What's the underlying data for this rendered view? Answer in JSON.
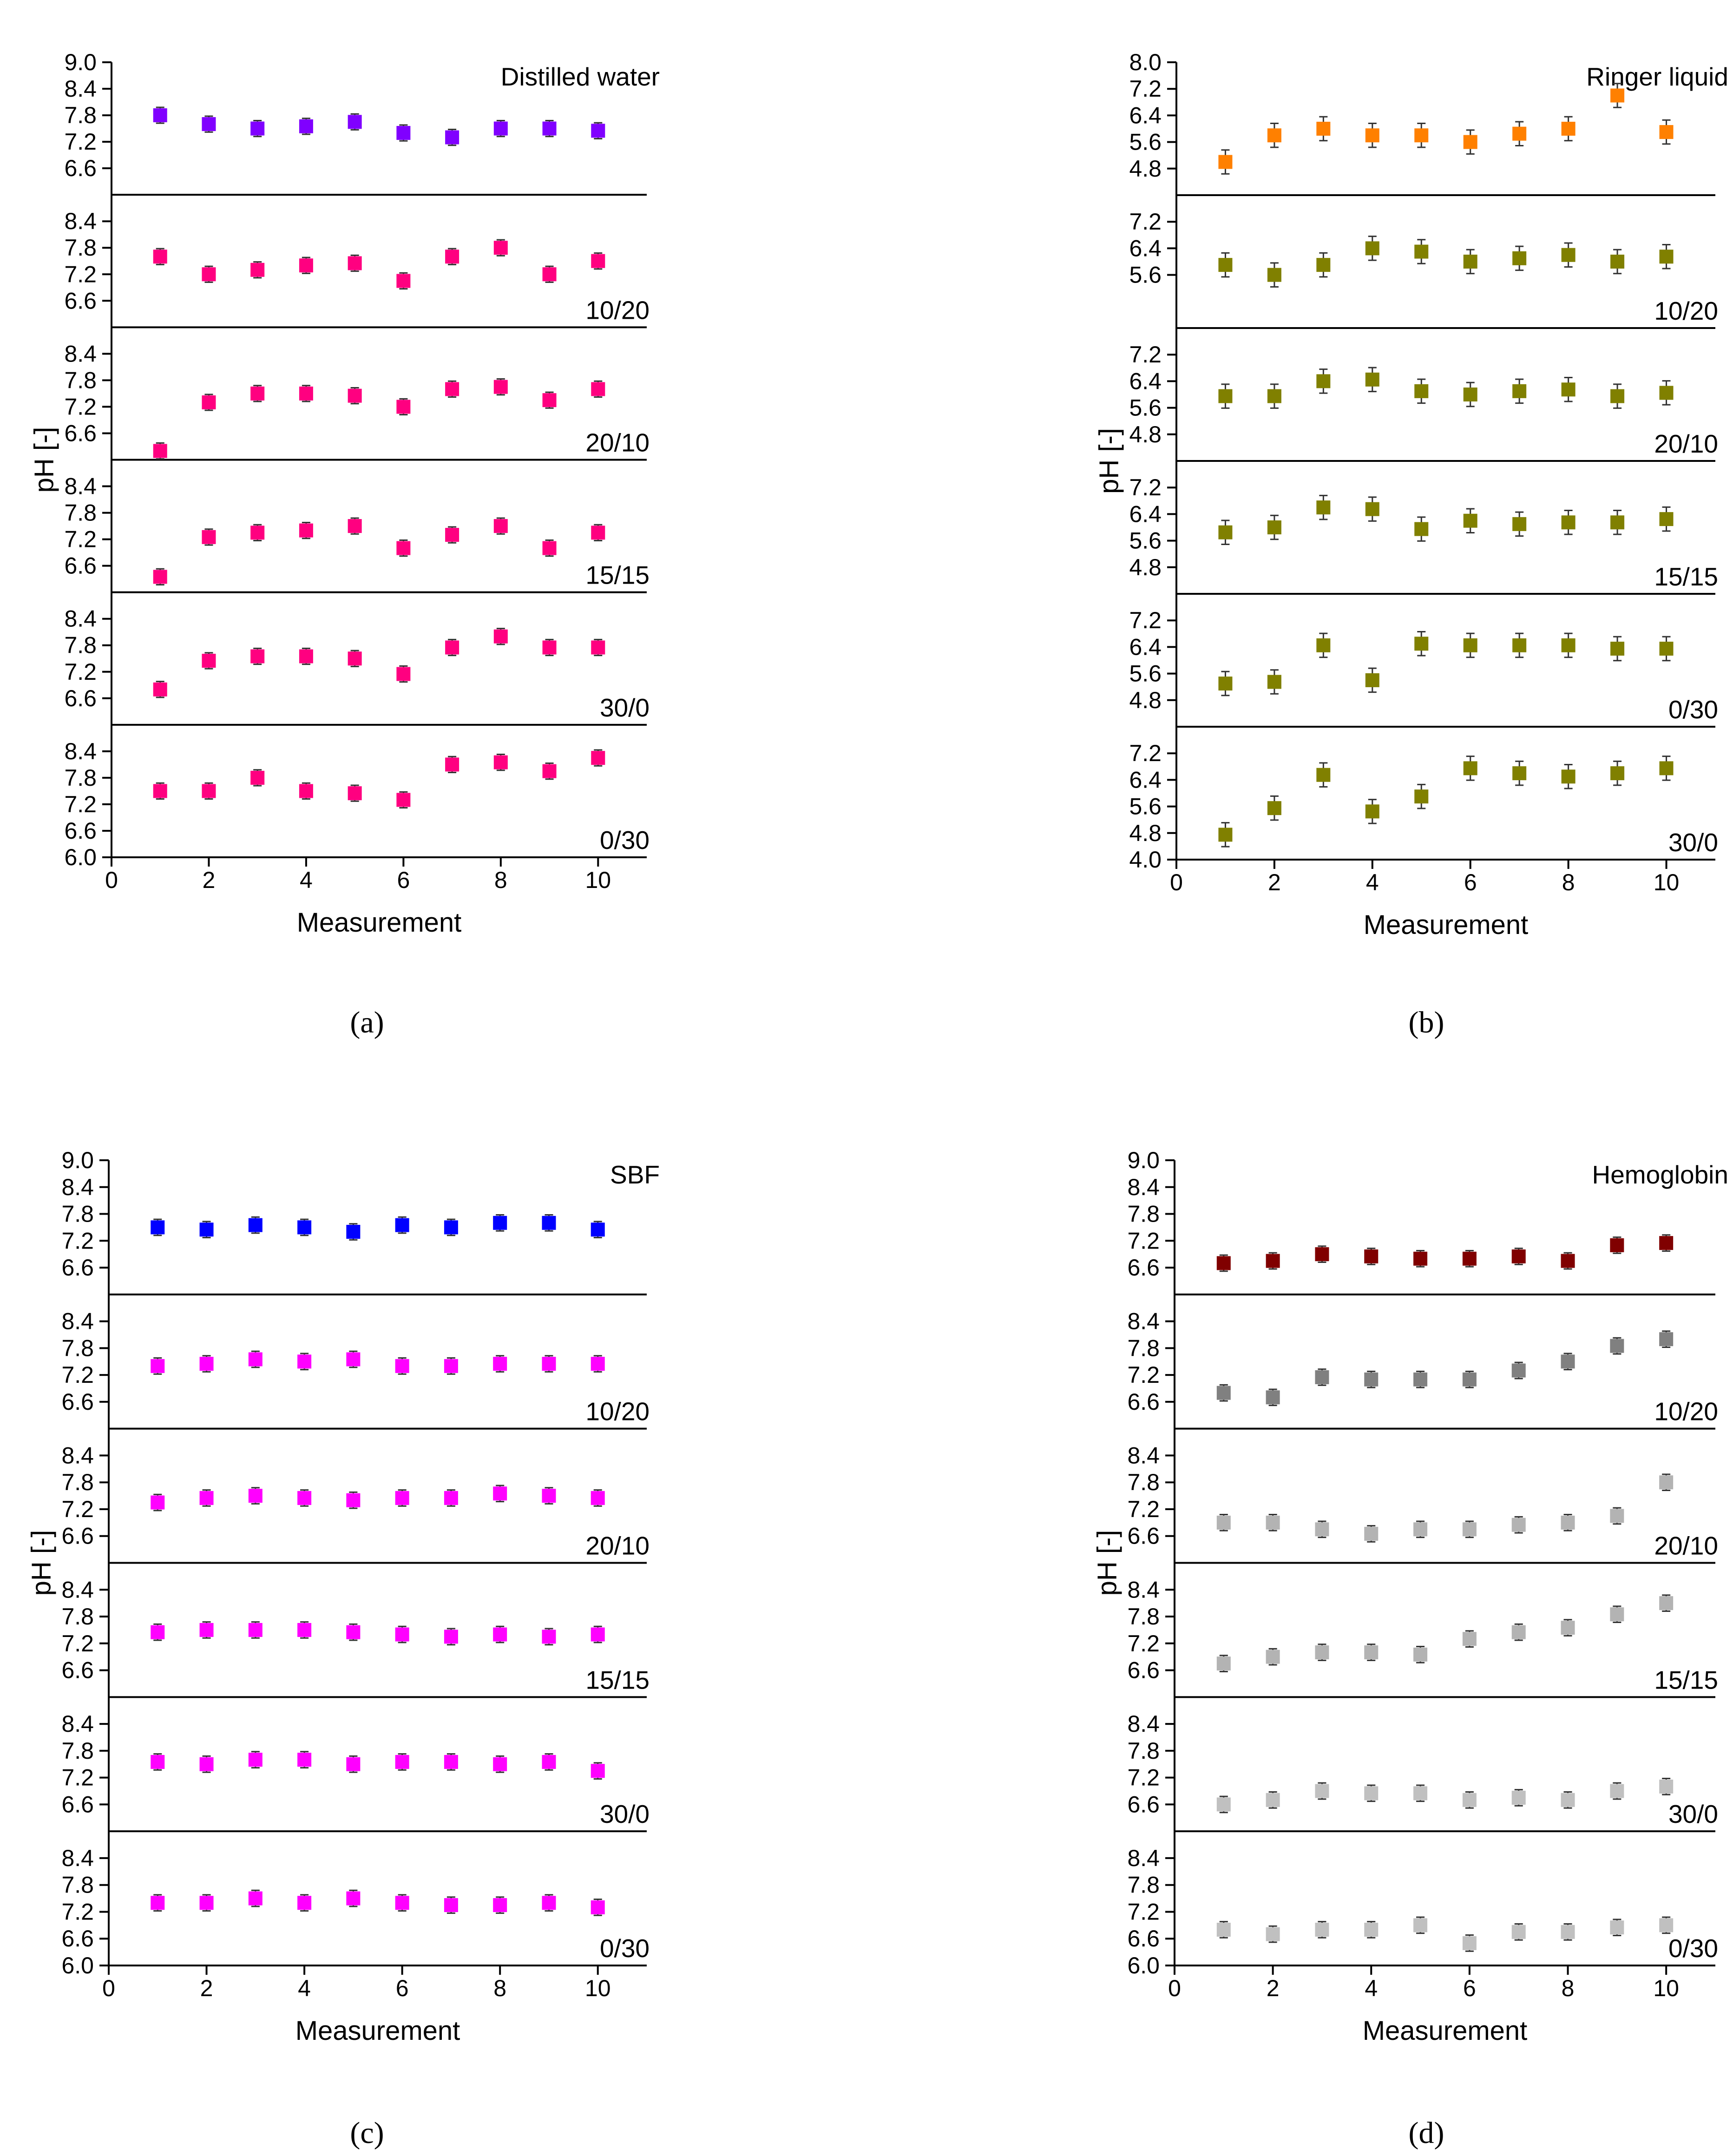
{
  "chart_data": [
    {
      "type": "scatter",
      "caption": "(a)",
      "xlabel": "Measurement",
      "ylabel": "pH [-]",
      "xlim": [
        0,
        11
      ],
      "xticks": [
        0,
        2,
        4,
        6,
        8,
        10
      ],
      "error": 0.18,
      "panels": [
        {
          "label": "Distilled water",
          "label_pos": "top-right",
          "color": "#8000ff",
          "ylim": [
            6.0,
            9.0
          ],
          "ticks": [
            6.6,
            7.2,
            7.8,
            8.4,
            9.0
          ],
          "tick_labels": [
            "6.6",
            "7.2",
            "7.8",
            "8.4",
            "9.0"
          ],
          "values": [
            7.8,
            7.6,
            7.5,
            7.55,
            7.65,
            7.4,
            7.3,
            7.5,
            7.5,
            7.45
          ]
        },
        {
          "label": "10/20",
          "label_pos": "bottom-right",
          "color": "#ff0080",
          "ylim": [
            6.0,
            9.0
          ],
          "ticks": [
            6.6,
            7.2,
            7.8,
            8.4
          ],
          "tick_labels": [
            "6.6",
            "7.2",
            "7.8",
            "8.4"
          ],
          "values": [
            7.6,
            7.2,
            7.3,
            7.4,
            7.45,
            7.05,
            7.6,
            7.8,
            7.2,
            7.5
          ]
        },
        {
          "label": "20/10",
          "label_pos": "bottom-right",
          "color": "#ff0080",
          "ylim": [
            6.0,
            9.0
          ],
          "ticks": [
            6.6,
            7.2,
            7.8,
            8.4
          ],
          "tick_labels": [
            "6.6",
            "7.2",
            "7.8",
            "8.4"
          ],
          "values": [
            6.2,
            7.3,
            7.5,
            7.5,
            7.45,
            7.2,
            7.6,
            7.65,
            7.35,
            7.6
          ]
        },
        {
          "label": "15/15",
          "label_pos": "bottom-right",
          "color": "#ff0080",
          "ylim": [
            6.0,
            9.0
          ],
          "ticks": [
            6.6,
            7.2,
            7.8,
            8.4
          ],
          "tick_labels": [
            "6.6",
            "7.2",
            "7.8",
            "8.4"
          ],
          "values": [
            6.35,
            7.25,
            7.35,
            7.4,
            7.5,
            7.0,
            7.3,
            7.5,
            7.0,
            7.35
          ]
        },
        {
          "label": "30/0",
          "label_pos": "bottom-right",
          "color": "#ff0080",
          "ylim": [
            6.0,
            9.0
          ],
          "ticks": [
            6.6,
            7.2,
            7.8,
            8.4
          ],
          "tick_labels": [
            "6.6",
            "7.2",
            "7.8",
            "8.4"
          ],
          "values": [
            6.8,
            7.45,
            7.55,
            7.55,
            7.5,
            7.15,
            7.75,
            8.0,
            7.75,
            7.75
          ]
        },
        {
          "label": "0/30",
          "label_pos": "bottom-right",
          "color": "#ff0080",
          "ylim": [
            6.0,
            9.0
          ],
          "ticks": [
            6.0,
            6.6,
            7.2,
            7.8,
            8.4
          ],
          "tick_labels": [
            "6.0",
            "6.6",
            "7.2",
            "7.8",
            "8.4"
          ],
          "values": [
            7.5,
            7.5,
            7.8,
            7.5,
            7.45,
            7.3,
            8.1,
            8.15,
            7.95,
            8.25
          ]
        }
      ]
    },
    {
      "type": "scatter",
      "caption": "(b)",
      "xlabel": "Measurement",
      "ylabel": "pH [-]",
      "xlim": [
        0,
        11
      ],
      "xticks": [
        0,
        2,
        4,
        6,
        8,
        10
      ],
      "error": 0.36,
      "panels": [
        {
          "label": "Ringer liquid",
          "label_pos": "top-right",
          "color": "#ff8000",
          "ylim": [
            4.0,
            8.0
          ],
          "ticks": [
            4.8,
            5.6,
            6.4,
            7.2,
            8.0
          ],
          "tick_labels": [
            "4.8",
            "5.6",
            "6.4",
            "7.2",
            "8.0"
          ],
          "values": [
            5.0,
            5.8,
            6.0,
            5.8,
            5.8,
            5.6,
            5.85,
            6.0,
            7.0,
            5.9
          ]
        },
        {
          "label": "10/20",
          "label_pos": "bottom-right",
          "color": "#808000",
          "ylim": [
            4.0,
            8.0
          ],
          "ticks": [
            5.6,
            6.4,
            7.2
          ],
          "tick_labels": [
            "5.6",
            "6.4",
            "7.2"
          ],
          "values": [
            5.9,
            5.6,
            5.9,
            6.4,
            6.3,
            6.0,
            6.1,
            6.2,
            6.0,
            6.15
          ]
        },
        {
          "label": "20/10",
          "label_pos": "bottom-right",
          "color": "#808000",
          "ylim": [
            4.0,
            8.0
          ],
          "ticks": [
            4.8,
            5.6,
            6.4,
            7.2
          ],
          "tick_labels": [
            "4.8",
            "5.6",
            "6.4",
            "7.2"
          ],
          "values": [
            5.95,
            5.95,
            6.4,
            6.45,
            6.1,
            6.0,
            6.1,
            6.15,
            5.95,
            6.05
          ]
        },
        {
          "label": "15/15",
          "label_pos": "bottom-right",
          "color": "#808000",
          "ylim": [
            4.0,
            8.0
          ],
          "ticks": [
            4.8,
            5.6,
            6.4,
            7.2
          ],
          "tick_labels": [
            "4.8",
            "5.6",
            "6.4",
            "7.2"
          ],
          "values": [
            5.85,
            6.0,
            6.6,
            6.55,
            5.95,
            6.2,
            6.1,
            6.15,
            6.15,
            6.25
          ]
        },
        {
          "label": "0/30",
          "label_pos": "bottom-right",
          "color": "#808000",
          "ylim": [
            4.0,
            8.0
          ],
          "ticks": [
            4.8,
            5.6,
            6.4,
            7.2
          ],
          "tick_labels": [
            "4.8",
            "5.6",
            "6.4",
            "7.2"
          ],
          "values": [
            5.3,
            5.35,
            6.45,
            5.4,
            6.5,
            6.45,
            6.45,
            6.45,
            6.35,
            6.35
          ]
        },
        {
          "label": "30/0",
          "label_pos": "bottom-right",
          "color": "#808000",
          "ylim": [
            4.0,
            8.0
          ],
          "ticks": [
            4.0,
            4.8,
            5.6,
            6.4,
            7.2
          ],
          "tick_labels": [
            "4.0",
            "4.8",
            "5.6",
            "6.4",
            "7.2"
          ],
          "values": [
            4.75,
            5.55,
            6.55,
            5.45,
            5.9,
            6.75,
            6.6,
            6.5,
            6.6,
            6.75
          ]
        }
      ]
    },
    {
      "type": "scatter",
      "caption": "(c)",
      "xlabel": "Measurement",
      "ylabel": "pH [-]",
      "xlim": [
        0,
        11
      ],
      "xticks": [
        0,
        2,
        4,
        6,
        8,
        10
      ],
      "error": 0.18,
      "panels": [
        {
          "label": "SBF",
          "label_pos": "top-right",
          "color": "#0000ff",
          "ylim": [
            6.0,
            9.0
          ],
          "ticks": [
            6.6,
            7.2,
            7.8,
            8.4,
            9.0
          ],
          "tick_labels": [
            "6.6",
            "7.2",
            "7.8",
            "8.4",
            "9.0"
          ],
          "values": [
            7.5,
            7.45,
            7.55,
            7.5,
            7.4,
            7.55,
            7.5,
            7.6,
            7.6,
            7.45
          ]
        },
        {
          "label": "10/20",
          "label_pos": "bottom-right",
          "color": "#ff00ff",
          "ylim": [
            6.0,
            9.0
          ],
          "ticks": [
            6.6,
            7.2,
            7.8,
            8.4
          ],
          "tick_labels": [
            "6.6",
            "7.2",
            "7.8",
            "8.4"
          ],
          "values": [
            7.4,
            7.45,
            7.55,
            7.5,
            7.55,
            7.4,
            7.4,
            7.45,
            7.45,
            7.45
          ]
        },
        {
          "label": "20/10",
          "label_pos": "bottom-right",
          "color": "#ff00ff",
          "ylim": [
            6.0,
            9.0
          ],
          "ticks": [
            6.6,
            7.2,
            7.8,
            8.4
          ],
          "tick_labels": [
            "6.6",
            "7.2",
            "7.8",
            "8.4"
          ],
          "values": [
            7.35,
            7.45,
            7.5,
            7.45,
            7.4,
            7.45,
            7.45,
            7.55,
            7.5,
            7.45
          ]
        },
        {
          "label": "15/15",
          "label_pos": "bottom-right",
          "color": "#ff00ff",
          "ylim": [
            6.0,
            9.0
          ],
          "ticks": [
            6.6,
            7.2,
            7.8,
            8.4
          ],
          "tick_labels": [
            "6.6",
            "7.2",
            "7.8",
            "8.4"
          ],
          "values": [
            7.45,
            7.5,
            7.5,
            7.5,
            7.45,
            7.4,
            7.35,
            7.4,
            7.35,
            7.4
          ]
        },
        {
          "label": "30/0",
          "label_pos": "bottom-right",
          "color": "#ff00ff",
          "ylim": [
            6.0,
            9.0
          ],
          "ticks": [
            6.6,
            7.2,
            7.8,
            8.4
          ],
          "tick_labels": [
            "6.6",
            "7.2",
            "7.8",
            "8.4"
          ],
          "values": [
            7.55,
            7.5,
            7.6,
            7.6,
            7.5,
            7.55,
            7.55,
            7.5,
            7.55,
            7.35
          ]
        },
        {
          "label": "0/30",
          "label_pos": "bottom-right",
          "color": "#ff00ff",
          "ylim": [
            6.0,
            9.0
          ],
          "ticks": [
            6.0,
            6.6,
            7.2,
            7.8,
            8.4
          ],
          "tick_labels": [
            "6.0",
            "6.6",
            "7.2",
            "7.8",
            "8.4"
          ],
          "values": [
            7.4,
            7.4,
            7.5,
            7.4,
            7.5,
            7.4,
            7.35,
            7.35,
            7.4,
            7.3
          ]
        }
      ]
    },
    {
      "type": "scatter",
      "caption": "(d)",
      "xlabel": "Measurement",
      "ylabel": "pH [-]",
      "xlim": [
        0,
        11
      ],
      "xticks": [
        0,
        2,
        4,
        6,
        8,
        10
      ],
      "error": 0.18,
      "panels": [
        {
          "label": "Hemoglobin",
          "label_pos": "top-right",
          "color": "#800000",
          "ylim": [
            6.0,
            9.0
          ],
          "ticks": [
            6.6,
            7.2,
            7.8,
            8.4,
            9.0
          ],
          "tick_labels": [
            "6.6",
            "7.2",
            "7.8",
            "8.4",
            "9.0"
          ],
          "values": [
            6.7,
            6.75,
            6.9,
            6.85,
            6.8,
            6.8,
            6.85,
            6.75,
            7.1,
            7.15
          ]
        },
        {
          "label": "10/20",
          "label_pos": "bottom-right",
          "color": "#808080",
          "ylim": [
            6.0,
            9.0
          ],
          "ticks": [
            6.6,
            7.2,
            7.8,
            8.4
          ],
          "tick_labels": [
            "6.6",
            "7.2",
            "7.8",
            "8.4"
          ],
          "values": [
            6.8,
            6.7,
            7.15,
            7.1,
            7.1,
            7.1,
            7.3,
            7.5,
            7.85,
            8.0
          ]
        },
        {
          "label": "20/10",
          "label_pos": "bottom-right",
          "color": "#b3b3b3",
          "ylim": [
            6.0,
            9.0
          ],
          "ticks": [
            6.6,
            7.2,
            7.8,
            8.4
          ],
          "tick_labels": [
            "6.6",
            "7.2",
            "7.8",
            "8.4"
          ],
          "values": [
            6.9,
            6.9,
            6.75,
            6.65,
            6.75,
            6.75,
            6.85,
            6.9,
            7.05,
            7.8
          ]
        },
        {
          "label": "15/15",
          "label_pos": "bottom-right",
          "color": "#b3b3b3",
          "ylim": [
            6.0,
            9.0
          ],
          "ticks": [
            6.6,
            7.2,
            7.8,
            8.4
          ],
          "tick_labels": [
            "6.6",
            "7.2",
            "7.8",
            "8.4"
          ],
          "values": [
            6.75,
            6.9,
            7.0,
            7.0,
            6.95,
            7.3,
            7.45,
            7.55,
            7.85,
            8.1
          ]
        },
        {
          "label": "30/0",
          "label_pos": "bottom-right",
          "color": "#c0c0c0",
          "ylim": [
            6.0,
            9.0
          ],
          "ticks": [
            6.6,
            7.2,
            7.8,
            8.4
          ],
          "tick_labels": [
            "6.6",
            "7.2",
            "7.8",
            "8.4"
          ],
          "values": [
            6.6,
            6.7,
            6.9,
            6.85,
            6.85,
            6.7,
            6.75,
            6.7,
            6.9,
            7.0
          ]
        },
        {
          "label": "0/30",
          "label_pos": "bottom-right",
          "color": "#c0c0c0",
          "ylim": [
            6.0,
            9.0
          ],
          "ticks": [
            6.0,
            6.6,
            7.2,
            7.8,
            8.4
          ],
          "tick_labels": [
            "6.0",
            "6.6",
            "7.2",
            "7.8",
            "8.4"
          ],
          "values": [
            6.8,
            6.7,
            6.8,
            6.8,
            6.9,
            6.5,
            6.75,
            6.75,
            6.85,
            6.9
          ]
        }
      ]
    }
  ]
}
